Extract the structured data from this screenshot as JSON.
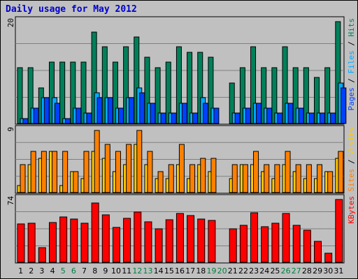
{
  "chart_data": {
    "type": "bar",
    "title": "Daily usage for May 2012",
    "categories": [
      "1",
      "2",
      "3",
      "4",
      "5",
      "6",
      "7",
      "8",
      "9",
      "10",
      "11",
      "12",
      "13",
      "14",
      "15",
      "16",
      "17",
      "18",
      "19",
      "20",
      "21",
      "22",
      "23",
      "24",
      "25",
      "26",
      "27",
      "28",
      "29",
      "30",
      "31"
    ],
    "weekend_days": [
      "5",
      "6",
      "12",
      "13",
      "19",
      "20",
      "26",
      "27"
    ],
    "colors": {
      "hits": "#00805a",
      "files": "#00aaff",
      "pages": "#0040ff",
      "visits": "#ffcc00",
      "sites": "#ff8000",
      "kbytes": "#ff0000",
      "title": "#0000cc",
      "weekday_label": "#000000",
      "weekend_label": "#008040",
      "panel_bg": "#c0c0c0"
    },
    "panels": [
      {
        "name": "hits",
        "ymax": 20,
        "ytick_label": "20",
        "side_label": [
          {
            "text": "Pages",
            "color": "#0040ff"
          },
          {
            "text": " / ",
            "color": "#000000"
          },
          {
            "text": "Files",
            "color": "#00aaff"
          },
          {
            "text": " / ",
            "color": "#000000"
          },
          {
            "text": "Hits",
            "color": "#00805a"
          }
        ],
        "series": [
          {
            "name": "Hits",
            "values": [
              11,
              11,
              7,
              12,
              12,
              12,
              12,
              18,
              15,
              12,
              15,
              17,
              13,
              11,
              12,
              15,
              14,
              14,
              13,
              0,
              8,
              11,
              15,
              11,
              11,
              15,
              11,
              11,
              9,
              11,
              20
            ]
          },
          {
            "name": "Files",
            "values": [
              1,
              3,
              5,
              5,
              1,
              3,
              2,
              6,
              5,
              3,
              5,
              7,
              4,
              2,
              2,
              4,
              2,
              5,
              3,
              0,
              2,
              3,
              4,
              3,
              2,
              4,
              3,
              2,
              2,
              2,
              8
            ]
          },
          {
            "name": "Pages",
            "values": [
              1,
              3,
              5,
              4,
              1,
              3,
              2,
              5,
              5,
              3,
              5,
              6,
              4,
              2,
              2,
              4,
              2,
              4,
              3,
              0,
              2,
              3,
              4,
              3,
              2,
              4,
              3,
              2,
              2,
              2,
              7
            ]
          }
        ]
      },
      {
        "name": "visits",
        "ymax": 9,
        "ytick_label": "9",
        "side_label": [
          {
            "text": "Sites",
            "color": "#ff8000"
          },
          {
            "text": " / ",
            "color": "#000000"
          },
          {
            "text": "Visits",
            "color": "#ffcc00"
          }
        ],
        "series": [
          {
            "name": "Visits",
            "values": [
              1,
              4,
              5,
              6,
              1,
              3,
              2,
              6,
              5,
              3,
              4,
              7,
              4,
              2,
              2,
              4,
              2,
              4,
              3,
              0,
              2,
              4,
              4,
              3,
              2,
              4,
              3,
              2,
              2,
              3,
              5
            ]
          },
          {
            "name": "Sites",
            "values": [
              4,
              6,
              6,
              6,
              6,
              3,
              6,
              9,
              7,
              6,
              7,
              9,
              6,
              3,
              4,
              7,
              4,
              5,
              5,
              0,
              4,
              4,
              6,
              4,
              4,
              6,
              4,
              4,
              4,
              3,
              6
            ]
          }
        ]
      },
      {
        "name": "kbytes",
        "ymax": 74,
        "ytick_label": "74",
        "side_label": [
          {
            "text": "KBytes",
            "color": "#ff0000"
          }
        ],
        "series": [
          {
            "name": "KBytes",
            "values": [
              47,
              48,
              18,
              49,
              56,
              53,
              48,
              73,
              58,
              43,
              54,
              62,
              50,
              41,
              52,
              60,
              57,
              53,
              51,
              0,
              41,
              45,
              61,
              44,
              48,
              60,
              45,
              39,
              26,
              11,
              77
            ]
          }
        ]
      }
    ]
  }
}
